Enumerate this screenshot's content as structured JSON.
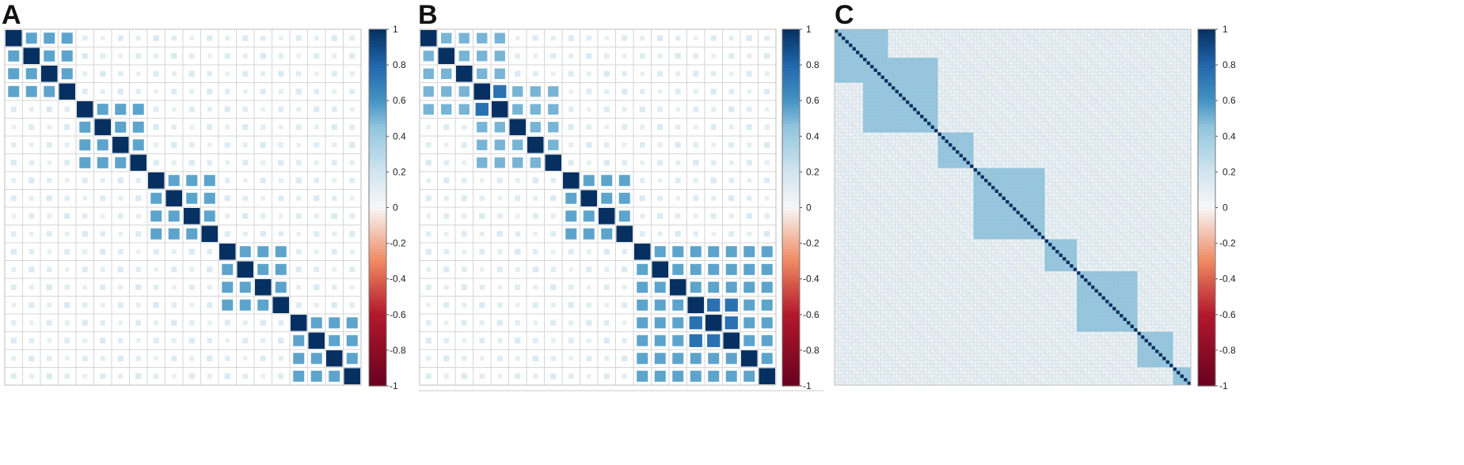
{
  "panels": [
    {
      "label": "A"
    },
    {
      "label": "B"
    },
    {
      "label": "C"
    }
  ],
  "colors": {
    "scale_negative_end": "#67001f",
    "scale_neutral": "#f7f7f7",
    "scale_positive_end": "#053061",
    "grid": "#d6d6d6",
    "fine_grid": "#b9c4cc"
  },
  "chart_data": [
    {
      "type": "heatmap",
      "panel": "A",
      "style": "corrplot-square",
      "n_variables": 20,
      "blocks": [
        {
          "start": 1,
          "end": 4,
          "within_r": 0.55
        },
        {
          "start": 5,
          "end": 8,
          "within_r": 0.55
        },
        {
          "start": 9,
          "end": 12,
          "within_r": 0.55
        },
        {
          "start": 13,
          "end": 16,
          "within_r": 0.55
        },
        {
          "start": 17,
          "end": 20,
          "within_r": 0.55
        }
      ],
      "diagonal_r": 1.0,
      "background_r": 0.12,
      "colorbar": {
        "min": -1,
        "max": 1,
        "ticks": [
          "1",
          "0.8",
          "0.6",
          "0.4",
          "0.2",
          "0",
          "-0.2",
          "-0.4",
          "-0.6",
          "-0.8",
          "-1"
        ]
      }
    },
    {
      "type": "heatmap",
      "panel": "B",
      "style": "corrplot-square",
      "n_variables": 20,
      "blocks": [
        {
          "start": 1,
          "end": 5,
          "within_r": 0.5
        },
        {
          "start": 4,
          "end": 8,
          "within_r": 0.5
        },
        {
          "start": 9,
          "end": 12,
          "within_r": 0.55
        },
        {
          "start": 13,
          "end": 20,
          "within_r": 0.55
        }
      ],
      "strong_pairs": [
        {
          "i": 4,
          "j": 5,
          "r": 0.75
        },
        {
          "i": 16,
          "j": 17,
          "r": 0.75
        },
        {
          "i": 16,
          "j": 18,
          "r": 0.75
        },
        {
          "i": 17,
          "j": 18,
          "r": 0.75
        }
      ],
      "diagonal_r": 1.0,
      "background_r": 0.12,
      "colorbar": {
        "min": -1,
        "max": 1,
        "ticks": [
          "1",
          "0.8",
          "0.6",
          "0.4",
          "0.2",
          "0",
          "-0.2",
          "-0.4",
          "-0.6",
          "-0.8",
          "-1"
        ]
      }
    },
    {
      "type": "heatmap",
      "panel": "C",
      "style": "corrplot-fine",
      "n_variables": 100,
      "blocks": [
        {
          "start": 1,
          "end": 15,
          "within_r": 0.45
        },
        {
          "start": 9,
          "end": 29,
          "within_r": 0.45
        },
        {
          "start": 30,
          "end": 39,
          "within_r": 0.45
        },
        {
          "start": 40,
          "end": 59,
          "within_r": 0.45
        },
        {
          "start": 60,
          "end": 68,
          "within_r": 0.45
        },
        {
          "start": 69,
          "end": 85,
          "within_r": 0.45
        },
        {
          "start": 86,
          "end": 95,
          "within_r": 0.45
        },
        {
          "start": 96,
          "end": 100,
          "within_r": 0.45
        }
      ],
      "diagonal_r": 1.0,
      "background_r": 0.08,
      "colorbar": {
        "min": -1,
        "max": 1,
        "ticks": [
          "1",
          "0.8",
          "0.6",
          "0.4",
          "0.2",
          "0",
          "-0.2",
          "-0.4",
          "-0.6",
          "-0.8",
          "-1"
        ]
      }
    }
  ]
}
